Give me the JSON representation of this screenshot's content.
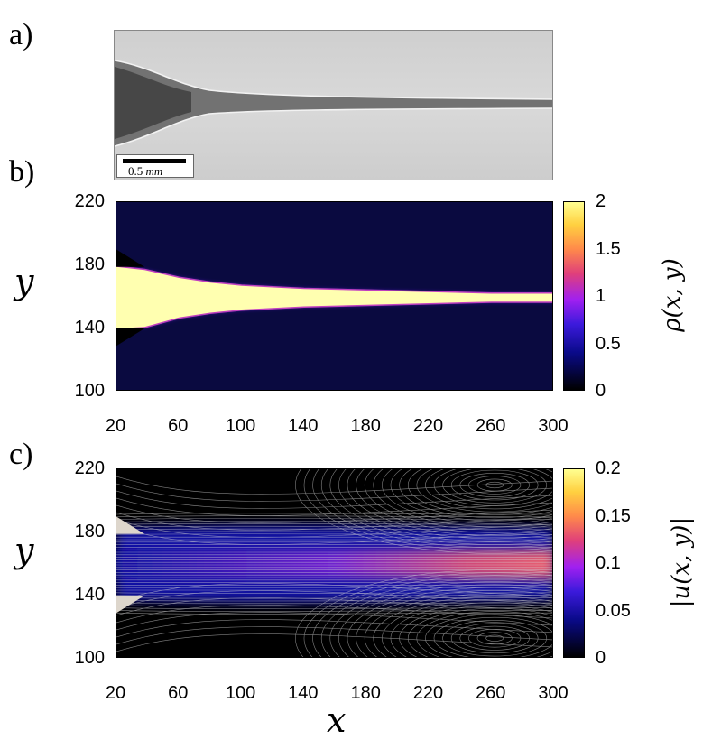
{
  "panels": {
    "a": {
      "letter": "a)",
      "scalebar_value": "0.5",
      "scalebar_unit": "mm"
    },
    "b": {
      "letter": "b)",
      "colorbar_label": "ρ(x, y)"
    },
    "c": {
      "letter": "c)",
      "colorbar_label": "|u(x, y)|"
    }
  },
  "x_axis_label": "x",
  "y_axis_label": "y",
  "chart_data": [
    {
      "type": "heatmap",
      "panel": "b",
      "title": "",
      "xlabel": "x",
      "ylabel": "y",
      "xlim": [
        20,
        300
      ],
      "ylim": [
        100,
        220
      ],
      "x_ticks": [
        "20",
        "60",
        "100",
        "140",
        "180",
        "220",
        "260",
        "300"
      ],
      "y_ticks": [
        "100",
        "140",
        "180",
        "220"
      ],
      "colorbar": {
        "label": "ρ(x, y)",
        "range": [
          0,
          2
        ],
        "ticks": [
          "0",
          "0.5",
          "1",
          "1.5",
          "2"
        ],
        "colormap": "black-blue-purple-orange-yellow"
      },
      "jet_profile": {
        "x": [
          20,
          38,
          60,
          80,
          100,
          140,
          180,
          220,
          260,
          300
        ],
        "upper_y": [
          179,
          177,
          172,
          169,
          167,
          165,
          164,
          163,
          162,
          162
        ],
        "lower_y": [
          140,
          141,
          147,
          150,
          152,
          154,
          155,
          156,
          157,
          157
        ]
      },
      "inlet_walls_y": [
        [
          129,
          140
        ],
        [
          179,
          190
        ]
      ],
      "colors": {
        "background": "#0a0a40",
        "jet": "#ffffb0",
        "edge": "#c040c0"
      }
    },
    {
      "type": "heatmap",
      "panel": "c",
      "title": "",
      "xlabel": "x",
      "ylabel": "y",
      "xlim": [
        20,
        300
      ],
      "ylim": [
        100,
        220
      ],
      "x_ticks": [
        "20",
        "60",
        "100",
        "140",
        "180",
        "220",
        "260",
        "300"
      ],
      "y_ticks": [
        "100",
        "140",
        "180",
        "220"
      ],
      "colorbar": {
        "label": "|u(x, y)|",
        "range": [
          0,
          0.2
        ],
        "ticks": [
          "0",
          "0.05",
          "0.1",
          "0.15",
          "0.2"
        ],
        "colormap": "black-blue-purple-orange-yellow"
      },
      "vortices": [
        {
          "x": 262,
          "y": 210
        },
        {
          "x": 262,
          "y": 113
        }
      ],
      "max_speed_region": {
        "x_range": [
          220,
          300
        ],
        "y": 160
      },
      "colors": {
        "background": "#000000",
        "jet_core": "#d04878",
        "streamline": "#d8d8d8"
      }
    }
  ]
}
